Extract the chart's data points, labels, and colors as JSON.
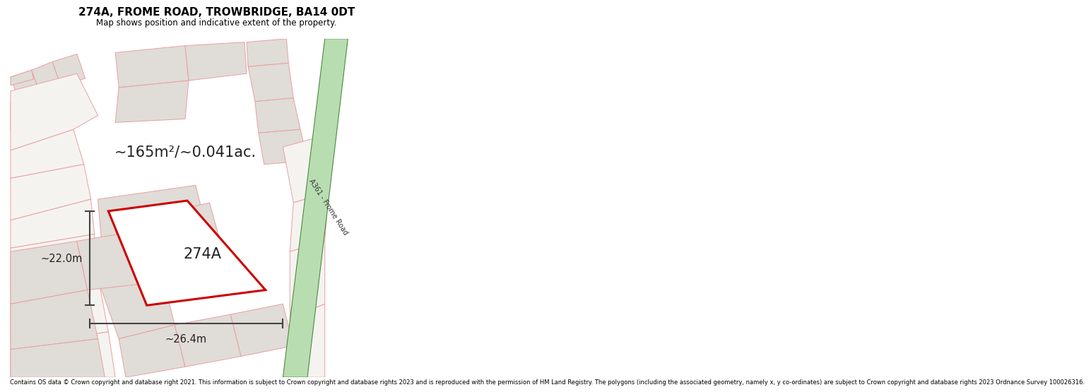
{
  "title": "274A, FROME ROAD, TROWBRIDGE, BA14 0DT",
  "subtitle": "Map shows position and indicative extent of the property.",
  "footer": "Contains OS data © Crown copyright and database right 2021. This information is subject to Crown copyright and database rights 2023 and is reproduced with the permission of HM Land Registry. The polygons (including the associated geometry, namely x, y co-ordinates) are subject to Crown copyright and database rights 2023 Ordnance Survey 100026316.",
  "area_label": "~165m²/~0.041ac.",
  "property_label": "274A",
  "dim_vertical": "~22.0m",
  "dim_horizontal": "~26.4m",
  "road_label": "A361 - Frome Road",
  "map_bg": "#f5f3f0",
  "road_green_fill": "#b8ddb0",
  "road_green_edge": "#4a8a40",
  "property_fill": "#ffffff",
  "property_edge": "#cc0000",
  "neighbor_fill": "#e0dcd8",
  "neighbor_edge": "#e8a0a0",
  "dim_color": "#444444",
  "title_color": "#000000",
  "footer_color": "#000000",
  "road_label_color": "#333333",
  "prop_label_color": "#222222"
}
